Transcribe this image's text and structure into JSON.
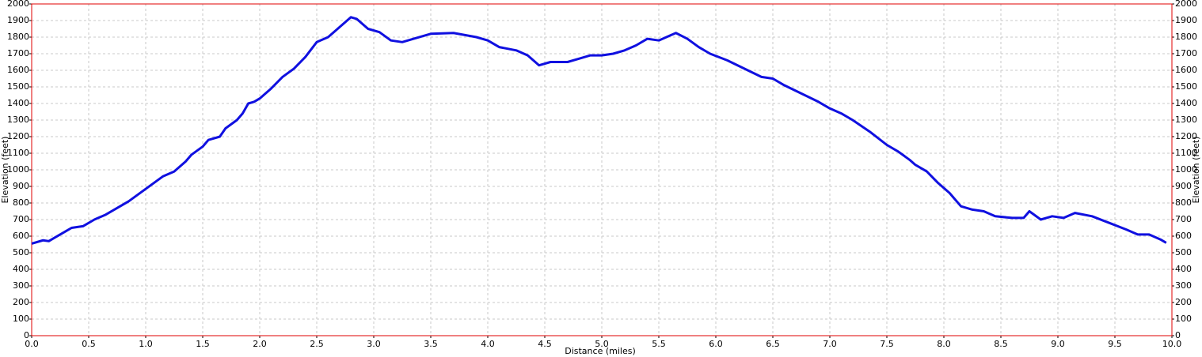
{
  "chart_data": {
    "type": "line",
    "xlabel": "Distance (miles)",
    "ylabel": "Elevation (feet)",
    "y2label": "Elevation (feet)",
    "xlim": [
      0,
      10
    ],
    "ylim": [
      0,
      2000
    ],
    "y2lim": [
      0,
      2000
    ],
    "xticks": [
      {
        "value": 0,
        "label": "0.0"
      },
      0.5,
      {
        "value": 1,
        "label": "1.0"
      },
      1.5,
      {
        "value": 2,
        "label": "2.0"
      },
      2.5,
      {
        "value": 3,
        "label": "3.0"
      },
      3.5,
      {
        "value": 4,
        "label": "4.0"
      },
      4.5,
      {
        "value": 5,
        "label": "5.0"
      },
      5.5,
      {
        "value": 6,
        "label": "6.0"
      },
      6.5,
      {
        "value": 7,
        "label": "7.0"
      },
      7.5,
      {
        "value": 8,
        "label": "8.0"
      },
      8.5,
      {
        "value": 9,
        "label": "9.0"
      },
      9.5,
      {
        "value": 10,
        "label": "10.0"
      }
    ],
    "yticks": [
      0,
      100,
      200,
      300,
      400,
      500,
      600,
      700,
      800,
      900,
      1000,
      1100,
      1200,
      1300,
      1400,
      1500,
      1600,
      1700,
      1800,
      1900,
      2000
    ],
    "y2ticks": [
      0,
      100,
      200,
      300,
      400,
      500,
      600,
      700,
      800,
      900,
      1000,
      1100,
      1200,
      1300,
      1400,
      1500,
      1600,
      1700,
      1800,
      1900,
      2000
    ],
    "grid": true,
    "x": [
      0.0,
      0.1,
      0.15,
      0.2,
      0.3,
      0.35,
      0.45,
      0.55,
      0.65,
      0.75,
      0.85,
      0.95,
      1.05,
      1.15,
      1.25,
      1.35,
      1.4,
      1.5,
      1.55,
      1.65,
      1.7,
      1.8,
      1.85,
      1.9,
      1.95,
      2.0,
      2.1,
      2.2,
      2.3,
      2.4,
      2.5,
      2.6,
      2.7,
      2.8,
      2.85,
      2.95,
      3.05,
      3.15,
      3.25,
      3.35,
      3.5,
      3.7,
      3.9,
      4.0,
      4.1,
      4.25,
      4.35,
      4.45,
      4.55,
      4.7,
      4.8,
      4.9,
      5.0,
      5.1,
      5.2,
      5.3,
      5.4,
      5.5,
      5.6,
      5.65,
      5.75,
      5.85,
      5.95,
      6.1,
      6.25,
      6.4,
      6.5,
      6.6,
      6.75,
      6.9,
      7.0,
      7.1,
      7.2,
      7.35,
      7.5,
      7.6,
      7.7,
      7.75,
      7.85,
      7.95,
      8.05,
      8.15,
      8.25,
      8.35,
      8.45,
      8.6,
      8.7,
      8.75,
      8.85,
      8.95,
      9.05,
      9.15,
      9.3,
      9.45,
      9.6,
      9.7,
      9.8,
      9.9,
      9.95
    ],
    "series": [
      {
        "name": "Elevation",
        "color": "#1010e0",
        "values": [
          555,
          575,
          570,
          590,
          630,
          650,
          660,
          700,
          730,
          770,
          810,
          860,
          910,
          960,
          990,
          1050,
          1090,
          1140,
          1180,
          1200,
          1250,
          1300,
          1340,
          1400,
          1410,
          1430,
          1490,
          1560,
          1610,
          1680,
          1770,
          1800,
          1860,
          1920,
          1910,
          1850,
          1830,
          1780,
          1770,
          1790,
          1820,
          1825,
          1800,
          1780,
          1740,
          1720,
          1690,
          1630,
          1650,
          1650,
          1670,
          1690,
          1690,
          1700,
          1720,
          1750,
          1790,
          1780,
          1810,
          1825,
          1790,
          1740,
          1700,
          1660,
          1610,
          1560,
          1550,
          1510,
          1460,
          1410,
          1370,
          1340,
          1300,
          1230,
          1150,
          1110,
          1060,
          1030,
          990,
          920,
          860,
          780,
          760,
          750,
          720,
          710,
          710,
          750,
          700,
          720,
          710,
          740,
          720,
          680,
          640,
          610,
          610,
          580,
          560
        ]
      }
    ]
  }
}
